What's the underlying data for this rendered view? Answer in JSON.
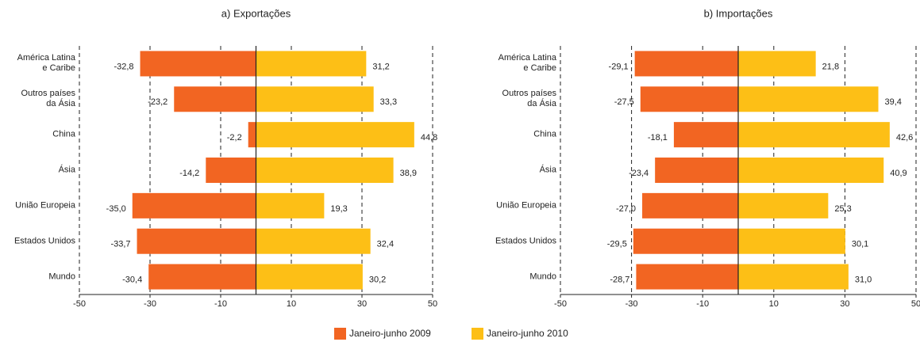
{
  "chart_data": [
    {
      "type": "bar",
      "title": "a) Exportações",
      "categories": [
        "América Latina\ne Caribe",
        "Outros países\nda Ásia",
        "China",
        "Ásia",
        "União Europeia",
        "Estados Unidos",
        "Mundo"
      ],
      "series": [
        {
          "name": "Janeiro-junho 2009",
          "color": "#f26522",
          "values": [
            -32.8,
            -23.2,
            -2.2,
            -14.2,
            -35.0,
            -33.7,
            -30.4
          ],
          "value_labels": [
            "-32,8",
            "-23,2",
            "-2,2",
            "-14,2",
            "-35,0",
            "-33,7",
            "-30,4"
          ]
        },
        {
          "name": "Janeiro-junho 2010",
          "color": "#fdbf16",
          "values": [
            31.2,
            33.3,
            44.8,
            38.9,
            19.3,
            32.4,
            30.2
          ],
          "value_labels": [
            "31,2",
            "33,3",
            "44,8",
            "38,9",
            "19,3",
            "32,4",
            "30,2"
          ]
        }
      ],
      "xlim": [
        -50,
        50
      ],
      "xticks": [
        -50,
        -30,
        -10,
        10,
        30,
        50
      ],
      "grid": true
    },
    {
      "type": "bar",
      "title": "b) Importações",
      "categories": [
        "América Latina\ne Caribe",
        "Outros países\nda Ásia",
        "China",
        "Ásia",
        "União Europeia",
        "Estados Unidos",
        "Mundo"
      ],
      "series": [
        {
          "color": "#f26522",
          "values": [
            -29.1,
            -27.5,
            -18.1,
            -23.4,
            -27.0,
            -29.5,
            -28.7
          ],
          "value_labels": [
            "-29,1",
            "-27,5",
            "-18,1",
            "-23,4",
            "-27,0",
            "-29,5",
            "-28,7"
          ]
        },
        {
          "color": "#fdbf16",
          "values": [
            21.8,
            39.4,
            42.6,
            40.9,
            25.3,
            30.1,
            31.0
          ],
          "value_labels": [
            "21,8",
            "39,4",
            "42,6",
            "40,9",
            "25,3",
            "30,1",
            "31,0"
          ]
        }
      ],
      "xlim": [
        -50,
        50
      ],
      "xticks": [
        -50,
        -30,
        -10,
        10,
        30,
        50
      ],
      "grid": true
    }
  ]
}
